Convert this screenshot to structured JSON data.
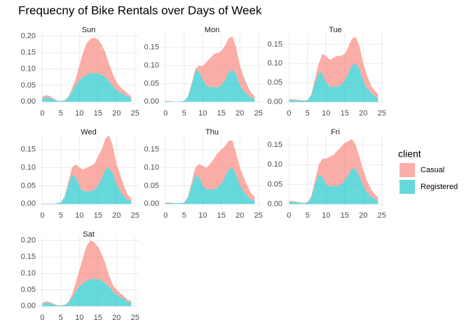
{
  "title": "Frequecny of Bike Rentals over Days of Week",
  "legend_title": "client",
  "chart_data": [
    {
      "type": "area",
      "stacked": true,
      "opacity": 0.6,
      "grid": true,
      "title": "Sun",
      "x": [
        0,
        1,
        2,
        3,
        4,
        5,
        6,
        7,
        8,
        9,
        10,
        11,
        12,
        13,
        14,
        15,
        16,
        17,
        18,
        19,
        20,
        21,
        22,
        23,
        24
      ],
      "xlim": [
        -1,
        26
      ],
      "xticks": [
        0,
        5,
        10,
        15,
        20,
        25
      ],
      "ylim": [
        -0.01,
        0.21
      ],
      "yticks": [
        {
          "value": 0,
          "label": "0.00"
        },
        {
          "value": 0.05,
          "label": "0.05"
        },
        {
          "value": 0.1,
          "label": "0.10"
        },
        {
          "value": 0.15,
          "label": "0.15"
        },
        {
          "value": 0.2,
          "label": "0.20"
        }
      ],
      "series": [
        {
          "name": "Casual",
          "color": "#F8766D",
          "values": [
            0.005,
            0.007,
            0.006,
            0.003,
            0.001,
            0,
            0.001,
            0.003,
            0.01,
            0.02,
            0.045,
            0.075,
            0.098,
            0.106,
            0.108,
            0.103,
            0.092,
            0.075,
            0.052,
            0.037,
            0.025,
            0.017,
            0.013,
            0.009,
            0.005
          ]
        },
        {
          "name": "Registered",
          "color": "#00BFC4",
          "values": [
            0.01,
            0.013,
            0.012,
            0.007,
            0.003,
            0.002,
            0.004,
            0.012,
            0.03,
            0.05,
            0.065,
            0.075,
            0.082,
            0.086,
            0.087,
            0.087,
            0.083,
            0.075,
            0.063,
            0.048,
            0.035,
            0.028,
            0.022,
            0.016,
            0.01
          ]
        }
      ]
    },
    {
      "type": "area",
      "stacked": true,
      "opacity": 0.6,
      "grid": true,
      "title": "Mon",
      "x": [
        0,
        1,
        2,
        3,
        4,
        5,
        6,
        7,
        8,
        9,
        10,
        11,
        12,
        13,
        14,
        15,
        16,
        17,
        18,
        19,
        20,
        21,
        22,
        23,
        24
      ],
      "xlim": [
        -1,
        26
      ],
      "xticks": [
        0,
        5,
        10,
        15,
        20,
        25
      ],
      "ylim": [
        -0.009,
        0.19
      ],
      "yticks": [
        {
          "value": 0,
          "label": "0.00"
        },
        {
          "value": 0.05,
          "label": "0.05"
        },
        {
          "value": 0.1,
          "label": "0.10"
        },
        {
          "value": 0.15,
          "label": "0.15"
        }
      ],
      "series": [
        {
          "name": "Casual",
          "color": "#F8766D",
          "values": [
            0.001,
            0.001,
            0,
            0,
            0,
            0,
            0.002,
            0.005,
            0.005,
            0.015,
            0.038,
            0.065,
            0.08,
            0.092,
            0.095,
            0.095,
            0.095,
            0.095,
            0.09,
            0.075,
            0.055,
            0.04,
            0.025,
            0.013,
            0.007
          ]
        },
        {
          "name": "Registered",
          "color": "#00BFC4",
          "values": [
            0.002,
            0.001,
            0.001,
            0.001,
            0.001,
            0.003,
            0.013,
            0.045,
            0.085,
            0.085,
            0.06,
            0.045,
            0.04,
            0.04,
            0.04,
            0.045,
            0.06,
            0.08,
            0.09,
            0.075,
            0.045,
            0.03,
            0.02,
            0.012,
            0.008
          ]
        }
      ]
    },
    {
      "type": "area",
      "stacked": true,
      "opacity": 0.6,
      "grid": true,
      "title": "Tue",
      "x": [
        0,
        1,
        2,
        3,
        4,
        5,
        6,
        7,
        8,
        9,
        10,
        11,
        12,
        13,
        14,
        15,
        16,
        17,
        18,
        19,
        20,
        21,
        22,
        23,
        24
      ],
      "xlim": [
        -1,
        26
      ],
      "xticks": [
        0,
        5,
        10,
        15,
        20,
        25
      ],
      "ylim": [
        -0.008,
        0.18
      ],
      "yticks": [
        {
          "value": 0,
          "label": "0.00"
        },
        {
          "value": 0.05,
          "label": "0.05"
        },
        {
          "value": 0.1,
          "label": "0.10"
        },
        {
          "value": 0.15,
          "label": "0.15"
        }
      ],
      "series": [
        {
          "name": "Casual",
          "color": "#F8766D",
          "values": [
            0.002,
            0.002,
            0.002,
            0.002,
            0.001,
            0.001,
            0.003,
            0.01,
            0.025,
            0.05,
            0.07,
            0.07,
            0.075,
            0.08,
            0.075,
            0.07,
            0.07,
            0.07,
            0.07,
            0.06,
            0.045,
            0.035,
            0.02,
            0.015,
            0.01
          ]
        },
        {
          "name": "Registered",
          "color": "#00BFC4",
          "values": [
            0.005,
            0.005,
            0.004,
            0.003,
            0.003,
            0.004,
            0.017,
            0.05,
            0.075,
            0.075,
            0.05,
            0.04,
            0.04,
            0.04,
            0.045,
            0.055,
            0.075,
            0.095,
            0.1,
            0.085,
            0.055,
            0.035,
            0.025,
            0.015,
            0.01
          ]
        }
      ]
    },
    {
      "type": "area",
      "stacked": true,
      "opacity": 0.6,
      "grid": true,
      "title": "Wed",
      "x": [
        0,
        1,
        2,
        3,
        4,
        5,
        6,
        7,
        8,
        9,
        10,
        11,
        12,
        13,
        14,
        15,
        16,
        17,
        18,
        19,
        20,
        21,
        22,
        23,
        24
      ],
      "xlim": [
        -1,
        26
      ],
      "xticks": [
        0,
        5,
        10,
        15,
        20,
        25
      ],
      "ylim": [
        -0.009,
        0.19
      ],
      "yticks": [
        {
          "value": 0,
          "label": "0.00"
        },
        {
          "value": 0.05,
          "label": "0.05"
        },
        {
          "value": 0.1,
          "label": "0.10"
        },
        {
          "value": 0.15,
          "label": "0.15"
        }
      ],
      "series": [
        {
          "name": "Casual",
          "color": "#F8766D",
          "values": [
            0,
            0,
            0,
            0,
            0,
            0,
            0.002,
            0.01,
            0.02,
            0.035,
            0.05,
            0.06,
            0.065,
            0.07,
            0.07,
            0.08,
            0.08,
            0.085,
            0.09,
            0.075,
            0.055,
            0.045,
            0.03,
            0.013,
            0.007
          ]
        },
        {
          "name": "Registered",
          "color": "#00BFC4",
          "values": [
            0.001,
            0.001,
            0.001,
            0.001,
            0.002,
            0.004,
            0.018,
            0.05,
            0.08,
            0.075,
            0.05,
            0.035,
            0.035,
            0.035,
            0.04,
            0.05,
            0.07,
            0.095,
            0.1,
            0.085,
            0.055,
            0.035,
            0.02,
            0.012,
            0.008
          ]
        }
      ]
    },
    {
      "type": "area",
      "stacked": true,
      "opacity": 0.6,
      "grid": true,
      "title": "Thu",
      "x": [
        0,
        1,
        2,
        3,
        4,
        5,
        6,
        7,
        8,
        9,
        10,
        11,
        12,
        13,
        14,
        15,
        16,
        17,
        18,
        19,
        20,
        21,
        22,
        23,
        24
      ],
      "xlim": [
        -1,
        26
      ],
      "xticks": [
        0,
        5,
        10,
        15,
        20,
        25
      ],
      "ylim": [
        -0.009,
        0.19
      ],
      "yticks": [
        {
          "value": 0,
          "label": "0.00"
        },
        {
          "value": 0.05,
          "label": "0.05"
        },
        {
          "value": 0.1,
          "label": "0.10"
        },
        {
          "value": 0.15,
          "label": "0.15"
        }
      ],
      "series": [
        {
          "name": "Casual",
          "color": "#F8766D",
          "values": [
            0.001,
            0.001,
            0.001,
            0,
            0,
            0.001,
            0.003,
            0.01,
            0.02,
            0.035,
            0.055,
            0.06,
            0.07,
            0.085,
            0.095,
            0.095,
            0.085,
            0.08,
            0.075,
            0.06,
            0.05,
            0.04,
            0.028,
            0.017,
            0.012
          ]
        },
        {
          "name": "Registered",
          "color": "#00BFC4",
          "values": [
            0.003,
            0.003,
            0.002,
            0.002,
            0.002,
            0.003,
            0.017,
            0.05,
            0.08,
            0.075,
            0.05,
            0.04,
            0.04,
            0.04,
            0.045,
            0.055,
            0.075,
            0.095,
            0.1,
            0.08,
            0.05,
            0.035,
            0.022,
            0.013,
            0.008
          ]
        }
      ]
    },
    {
      "type": "area",
      "stacked": true,
      "opacity": 0.6,
      "grid": true,
      "title": "Fri",
      "x": [
        0,
        1,
        2,
        3,
        4,
        5,
        6,
        7,
        8,
        9,
        10,
        11,
        12,
        13,
        14,
        15,
        16,
        17,
        18,
        19,
        20,
        21,
        22,
        23,
        24
      ],
      "xlim": [
        -1,
        26
      ],
      "xticks": [
        0,
        5,
        10,
        15,
        20,
        25
      ],
      "ylim": [
        -0.008,
        0.175
      ],
      "yticks": [
        {
          "value": 0,
          "label": "0.00"
        },
        {
          "value": 0.05,
          "label": "0.05"
        },
        {
          "value": 0.1,
          "label": "0.10"
        },
        {
          "value": 0.15,
          "label": "0.15"
        }
      ],
      "series": [
        {
          "name": "Casual",
          "color": "#F8766D",
          "values": [
            0.002,
            0.002,
            0.002,
            0.001,
            0.001,
            0.001,
            0.004,
            0.01,
            0.025,
            0.045,
            0.065,
            0.075,
            0.08,
            0.09,
            0.095,
            0.095,
            0.085,
            0.075,
            0.06,
            0.05,
            0.04,
            0.03,
            0.02,
            0.012,
            0.01
          ]
        },
        {
          "name": "Registered",
          "color": "#00BFC4",
          "values": [
            0.005,
            0.006,
            0.004,
            0.003,
            0.002,
            0.004,
            0.016,
            0.05,
            0.075,
            0.07,
            0.05,
            0.045,
            0.045,
            0.045,
            0.05,
            0.06,
            0.075,
            0.09,
            0.09,
            0.07,
            0.045,
            0.03,
            0.02,
            0.013,
            0.008
          ]
        }
      ]
    },
    {
      "type": "area",
      "stacked": true,
      "opacity": 0.6,
      "grid": true,
      "title": "Sat",
      "x": [
        0,
        1,
        2,
        3,
        4,
        5,
        6,
        7,
        8,
        9,
        10,
        11,
        12,
        13,
        14,
        15,
        16,
        17,
        18,
        19,
        20,
        21,
        22,
        23,
        24
      ],
      "xlim": [
        -1,
        26
      ],
      "xticks": [
        0,
        5,
        10,
        15,
        20,
        25
      ],
      "ylim": [
        -0.01,
        0.21
      ],
      "yticks": [
        {
          "value": 0,
          "label": "0.00"
        },
        {
          "value": 0.05,
          "label": "0.05"
        },
        {
          "value": 0.1,
          "label": "0.10"
        },
        {
          "value": 0.15,
          "label": "0.15"
        },
        {
          "value": 0.2,
          "label": "0.20"
        }
      ],
      "series": [
        {
          "name": "Casual",
          "color": "#F8766D",
          "values": [
            0.002,
            0.005,
            0.004,
            0.003,
            0.001,
            0,
            0.001,
            0.002,
            0.01,
            0.025,
            0.05,
            0.08,
            0.107,
            0.118,
            0.112,
            0.098,
            0.082,
            0.06,
            0.035,
            0.02,
            0.015,
            0.012,
            0.008,
            0.006,
            0.005
          ]
        },
        {
          "name": "Registered",
          "color": "#00BFC4",
          "values": [
            0.008,
            0.01,
            0.009,
            0.005,
            0.002,
            0.002,
            0.003,
            0.01,
            0.025,
            0.045,
            0.06,
            0.07,
            0.078,
            0.082,
            0.083,
            0.082,
            0.078,
            0.07,
            0.06,
            0.045,
            0.035,
            0.028,
            0.022,
            0.014,
            0.01
          ]
        }
      ]
    }
  ]
}
